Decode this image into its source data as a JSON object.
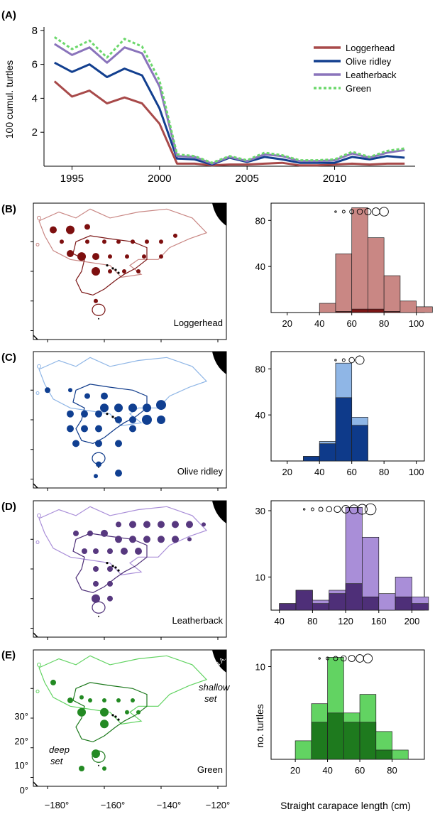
{
  "colors": {
    "loggerhead_light": "#c98784",
    "loggerhead_dark": "#7a1515",
    "loggerhead_line": "#a84a4a",
    "olive_light": "#8fb6e6",
    "olive_dark": "#0e3a8a",
    "olive_line": "#123f8f",
    "leather_light": "#a98ed8",
    "leather_dark": "#4e2f78",
    "leather_line": "#8a74bb",
    "green_light": "#62d362",
    "green_dark": "#1e7a1e",
    "green_line": "#6cd86c",
    "land": "#000000"
  },
  "panel_labels": [
    "(A)",
    "(B)",
    "(C)",
    "(D)",
    "(E)"
  ],
  "chart_data": [
    {
      "id": "A",
      "type": "line",
      "ylabel": "100 cumul. turtles",
      "x": [
        1994,
        1995,
        1996,
        1997,
        1998,
        1999,
        2000,
        2001,
        2002,
        2003,
        2004,
        2005,
        2006,
        2007,
        2008,
        2009,
        2010,
        2011,
        2012,
        2013,
        2014
      ],
      "xticks": [
        "1995",
        "2000",
        "2005",
        "2010"
      ],
      "xtick_values": [
        1995,
        2000,
        2005,
        2010
      ],
      "yticks": [
        "2",
        "4",
        "6",
        "8"
      ],
      "ytick_values": [
        2,
        4,
        6,
        8
      ],
      "xlim": [
        1993.4,
        2014.6
      ],
      "ylim": [
        0,
        8.2
      ],
      "legend_position": "top-right",
      "series": [
        {
          "name": "Loggerhead",
          "color": "#a84a4a",
          "dash": false,
          "values": [
            5.0,
            4.1,
            4.45,
            3.7,
            4.05,
            3.7,
            2.5,
            0.15,
            0.15,
            0.05,
            0.1,
            0.1,
            0.15,
            0.2,
            0.05,
            0.05,
            0.1,
            0.15,
            0.1,
            0.15,
            0.15
          ]
        },
        {
          "name": "Olive ridley",
          "color": "#123f8f",
          "dash": false,
          "values": [
            6.1,
            5.55,
            6.0,
            5.25,
            5.75,
            5.35,
            3.4,
            0.45,
            0.4,
            0.1,
            0.5,
            0.25,
            0.55,
            0.4,
            0.2,
            0.2,
            0.2,
            0.55,
            0.4,
            0.6,
            0.5
          ]
        },
        {
          "name": "Leatherback",
          "color": "#8a74bb",
          "dash": false,
          "values": [
            7.2,
            6.55,
            7.0,
            6.1,
            7.0,
            6.65,
            4.7,
            0.6,
            0.55,
            0.15,
            0.55,
            0.3,
            0.7,
            0.6,
            0.3,
            0.3,
            0.35,
            0.75,
            0.5,
            0.8,
            0.95
          ]
        },
        {
          "name": "Green",
          "color": "#6cd86c",
          "dash": true,
          "values": [
            7.6,
            6.9,
            7.4,
            6.4,
            7.5,
            7.05,
            5.05,
            0.7,
            0.6,
            0.2,
            0.6,
            0.35,
            0.8,
            0.65,
            0.35,
            0.35,
            0.4,
            0.85,
            0.55,
            0.9,
            1.05
          ]
        }
      ]
    },
    {
      "id": "B",
      "type": "bar",
      "species": "Loggerhead",
      "x_start": 30,
      "bin_width": 10,
      "xlim": [
        10,
        105
      ],
      "xticks": [
        "20",
        "40",
        "60",
        "80",
        "100"
      ],
      "xtick_values": [
        20,
        40,
        60,
        80,
        100
      ],
      "yticks": [
        "40",
        "80"
      ],
      "ytick_values": [
        40,
        80
      ],
      "ylim": [
        0,
        95
      ],
      "total": [
        0,
        8,
        51,
        91,
        65,
        32,
        10,
        5
      ],
      "deep": [
        0,
        0,
        1,
        3,
        3,
        1,
        0,
        0
      ],
      "size_legend_x": [
        50,
        55,
        60,
        65,
        70,
        75,
        80
      ],
      "size_legend_r": [
        1.2,
        2.0,
        3.0,
        3.8,
        4.6,
        5.4,
        6.2
      ]
    },
    {
      "id": "C",
      "type": "bar",
      "species": "Olive ridley",
      "x_start": 30,
      "bin_width": 10,
      "xlim": [
        10,
        105
      ],
      "xticks": [
        "20",
        "40",
        "60",
        "80",
        "100"
      ],
      "xtick_values": [
        20,
        40,
        60,
        80,
        100
      ],
      "yticks": [
        "40",
        "80"
      ],
      "ytick_values": [
        40,
        80
      ],
      "ylim": [
        0,
        95
      ],
      "total": [
        4,
        17,
        85,
        38
      ],
      "deep": [
        4,
        15,
        55,
        31
      ],
      "size_legend_x": [
        50,
        55,
        60,
        65
      ],
      "size_legend_r": [
        1.2,
        2.0,
        3.8,
        6.0
      ]
    },
    {
      "id": "D",
      "type": "bar",
      "species": "Leatherback",
      "x_start": 40,
      "bin_width": 20,
      "xlim": [
        30,
        215
      ],
      "xticks": [
        "40",
        "80",
        "120",
        "160",
        "200"
      ],
      "xtick_values": [
        40,
        80,
        120,
        160,
        200
      ],
      "yticks": [
        "10",
        "30"
      ],
      "ytick_values": [
        10,
        30
      ],
      "ylim": [
        0,
        33
      ],
      "total": [
        2,
        6,
        3,
        6,
        31,
        22,
        5,
        10,
        4
      ],
      "deep": [
        2,
        6,
        2,
        5,
        8,
        4,
        0,
        4,
        2
      ],
      "size_legend_x": [
        70,
        80,
        90,
        100,
        110,
        120,
        130,
        140,
        150
      ],
      "size_legend_r": [
        1.2,
        2.0,
        3.0,
        3.8,
        4.6,
        5.4,
        6.2,
        7.0,
        7.8
      ]
    },
    {
      "id": "E",
      "type": "bar",
      "species": "Green",
      "x_start": 20,
      "bin_width": 10,
      "xlim": [
        5,
        100
      ],
      "xticks": [
        "20",
        "40",
        "60",
        "80"
      ],
      "xtick_values": [
        20,
        40,
        60,
        80
      ],
      "yticks": [
        "10"
      ],
      "ytick_values": [
        10
      ],
      "ylabel": "no. turtles",
      "xlabel": "Straight carapace length (cm)",
      "ylim": [
        0,
        11.8
      ],
      "total": [
        2,
        6,
        11,
        5,
        7,
        3,
        1
      ],
      "deep": [
        0,
        4,
        5,
        4,
        4,
        1,
        0
      ],
      "size_legend_x": [
        35,
        40,
        45,
        50,
        55,
        60,
        65
      ],
      "size_legend_r": [
        1.2,
        2.0,
        3.0,
        3.8,
        4.6,
        5.4,
        6.2
      ]
    }
  ],
  "maps": {
    "species": [
      "Loggerhead",
      "Olive ridley",
      "Leatherback",
      "Green"
    ],
    "lon_ticks": [
      "−180°",
      "−160°",
      "−140°",
      "−120°"
    ],
    "lat_ticks": [
      "0°",
      "10°",
      "20°",
      "30°"
    ],
    "shallow_label_line1": "shallow",
    "shallow_label_line2": "set",
    "deep_label_line1": "deep",
    "deep_label_line2": "set",
    "na_label": "N.A.",
    "dots": {
      "Loggerhead": [
        [
          -178,
          34,
          5
        ],
        [
          -172,
          34,
          6
        ],
        [
          -166,
          35,
          4
        ],
        [
          -166,
          30,
          3
        ],
        [
          -160,
          30,
          3
        ],
        [
          -155,
          30,
          3
        ],
        [
          -150,
          30,
          3
        ],
        [
          -145,
          30,
          3
        ],
        [
          -140,
          30,
          3
        ],
        [
          -135,
          32,
          3
        ],
        [
          -175,
          30,
          3
        ],
        [
          -172,
          26,
          5
        ],
        [
          -168,
          25,
          6
        ],
        [
          -163,
          25,
          5
        ],
        [
          -158,
          25,
          3
        ],
        [
          -152,
          25,
          3
        ],
        [
          -146,
          25,
          3
        ],
        [
          -140,
          25,
          3
        ],
        [
          -163,
          20,
          6
        ],
        [
          -158,
          20,
          3
        ],
        [
          -153,
          20,
          3
        ],
        [
          -148,
          20,
          3
        ],
        [
          -163,
          10,
          3
        ]
      ],
      "Olive ridley": [
        [
          -180,
          30,
          4
        ],
        [
          -172,
          30,
          3
        ],
        [
          -166,
          28,
          4
        ],
        [
          -160,
          28,
          5
        ],
        [
          -160,
          24,
          6
        ],
        [
          -155,
          24,
          6
        ],
        [
          -150,
          24,
          6
        ],
        [
          -145,
          24,
          6
        ],
        [
          -140,
          25,
          7
        ],
        [
          -172,
          22,
          5
        ],
        [
          -167,
          22,
          5
        ],
        [
          -162,
          22,
          5
        ],
        [
          -155,
          20,
          5
        ],
        [
          -150,
          20,
          5
        ],
        [
          -145,
          20,
          7
        ],
        [
          -140,
          20,
          6
        ],
        [
          -172,
          17,
          5
        ],
        [
          -167,
          17,
          5
        ],
        [
          -162,
          17,
          5
        ],
        [
          -150,
          17,
          5
        ],
        [
          -170,
          12,
          5
        ],
        [
          -162,
          12,
          5
        ],
        [
          -155,
          12,
          5
        ],
        [
          -162,
          5,
          4
        ],
        [
          -155,
          2,
          5
        ],
        [
          -163,
          1,
          3
        ]
      ],
      "Leatherback": [
        [
          -155,
          35,
          4
        ],
        [
          -150,
          35,
          5
        ],
        [
          -145,
          35,
          5
        ],
        [
          -140,
          35,
          5
        ],
        [
          -135,
          35,
          5
        ],
        [
          -130,
          35,
          5
        ],
        [
          -125,
          35,
          3
        ],
        [
          -170,
          32,
          4
        ],
        [
          -165,
          32,
          4
        ],
        [
          -160,
          32,
          5
        ],
        [
          -155,
          30,
          5
        ],
        [
          -150,
          30,
          5
        ],
        [
          -145,
          30,
          5
        ],
        [
          -140,
          30,
          5
        ],
        [
          -135,
          30,
          5
        ],
        [
          -130,
          30,
          3
        ],
        [
          -167,
          26,
          4
        ],
        [
          -163,
          26,
          4
        ],
        [
          -158,
          26,
          4
        ],
        [
          -153,
          26,
          5
        ],
        [
          -148,
          26,
          5
        ],
        [
          -163,
          20,
          4
        ],
        [
          -158,
          20,
          4
        ],
        [
          -163,
          15,
          4
        ],
        [
          -158,
          15,
          4
        ],
        [
          -163,
          10,
          6
        ],
        [
          -158,
          10,
          4
        ]
      ],
      "Green": [
        [
          -178,
          32,
          4
        ],
        [
          -172,
          26,
          4
        ],
        [
          -168,
          27,
          3
        ],
        [
          -165,
          26,
          3
        ],
        [
          -160,
          26,
          3
        ],
        [
          -155,
          26,
          3
        ],
        [
          -150,
          26,
          3
        ],
        [
          -168,
          22,
          6
        ],
        [
          -160,
          22,
          6
        ],
        [
          -152,
          22,
          3
        ],
        [
          -148,
          22,
          3
        ],
        [
          -160,
          18,
          6
        ],
        [
          -163,
          8,
          6
        ],
        [
          -168,
          3,
          4
        ],
        [
          -160,
          3,
          3
        ]
      ]
    }
  }
}
